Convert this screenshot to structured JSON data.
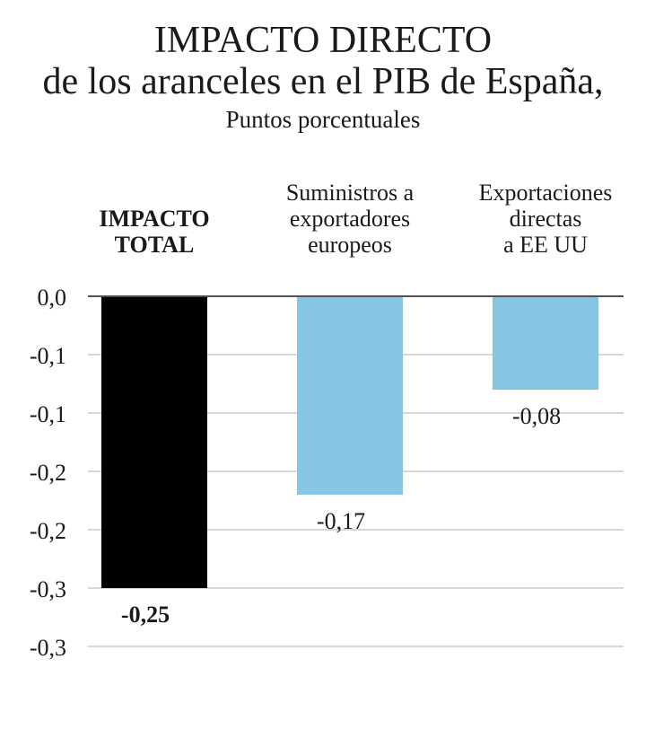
{
  "header": {
    "title_line1": "IMPACTO DIRECTO",
    "title_line2": "de los aranceles en el PIB de España,",
    "subtitle": "Puntos porcentuales"
  },
  "colors": {
    "total_bar": "#000000",
    "component_bar": "#87c5e3",
    "gridline": "#bfbfbf",
    "zero_line": "#1a1a1a"
  },
  "chart_data": {
    "type": "bar",
    "title": "IMPACTO DIRECTO de los aranceles en el PIB de España,",
    "subtitle": "Puntos porcentuales",
    "categories": [
      [
        "IMPACTO",
        "TOTAL"
      ],
      [
        "Suministros a",
        "exportadores",
        "europeos"
      ],
      [
        "Exportaciones",
        "directas",
        "a EE UU"
      ]
    ],
    "values": [
      -0.25,
      -0.17,
      -0.08
    ],
    "value_labels": [
      "-0,25",
      "-0,17",
      "-0,08"
    ],
    "bar_colors": [
      "#000000",
      "#87c5e3",
      "#87c5e3"
    ],
    "bold": [
      true,
      false,
      false
    ],
    "ylim": [
      -0.3,
      0.0
    ],
    "yticks": [
      0.0,
      -0.05,
      -0.1,
      -0.15,
      -0.2,
      -0.25,
      -0.3
    ],
    "ytick_labels": [
      "0,0",
      "-0,1",
      "-0,1",
      "-0,2",
      "-0,2",
      "-0,3",
      "-0,3"
    ],
    "grid": true
  }
}
